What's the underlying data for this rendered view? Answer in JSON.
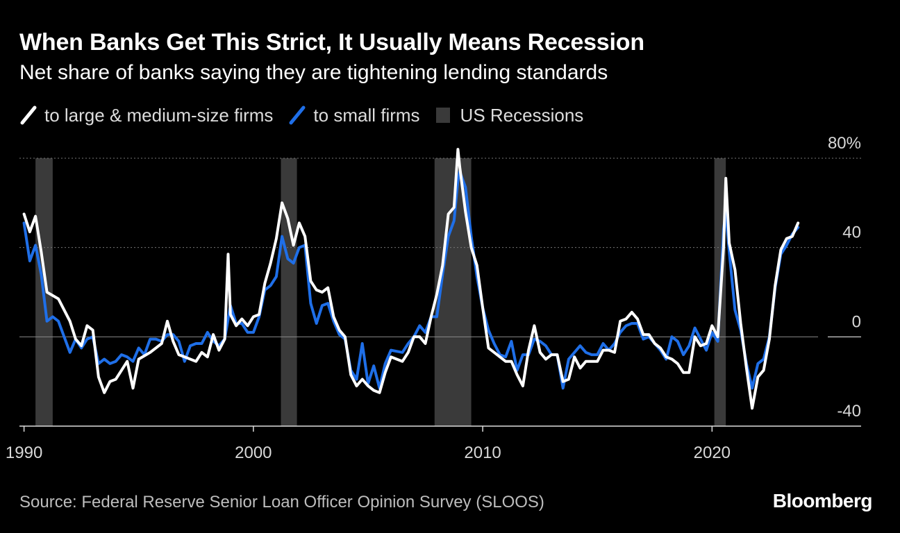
{
  "title": "When Banks Get This Strict, It Usually Means Recession",
  "subtitle": "Net share of banks saying they are tightening lending standards",
  "legend": {
    "large_firms": "to large & medium-size firms",
    "small_firms": "to small firms",
    "recessions": "US Recessions"
  },
  "source": "Source: Federal Reserve Senior Loan Officer Opinion Survey (SLOOS)",
  "brand": "Bloomberg",
  "colors": {
    "background": "#000000",
    "large_firms": "#ffffff",
    "small_firms": "#1f6fe8",
    "recession": "#3a3a3a",
    "grid": "#777777"
  },
  "chart_data": {
    "type": "line",
    "title": "When Banks Get This Strict, It Usually Means Recession",
    "subtitle": "Net share of banks saying they are tightening lending standards",
    "xlabel": "",
    "ylabel": "",
    "xlim": [
      1989.8,
      2026.5
    ],
    "ylim": [
      -40,
      80
    ],
    "x_ticks": [
      1990,
      2000,
      2010,
      2020
    ],
    "x_tick_labels": [
      "1990",
      "2000",
      "2010",
      "2020"
    ],
    "y_ticks": [
      80,
      40,
      0,
      -40
    ],
    "y_tick_labels": [
      "80%",
      "40",
      "0",
      "-40"
    ],
    "gridlines": "horizontal dotted at 80 and 40, solid at 0",
    "recessions": [
      [
        1990.5,
        1991.25
      ],
      [
        2001.2,
        2001.9
      ],
      [
        2007.9,
        2009.5
      ],
      [
        2020.1,
        2020.6
      ]
    ],
    "series": [
      {
        "name": "to large & medium-size firms",
        "points": [
          [
            1990.0,
            55
          ],
          [
            1990.25,
            47
          ],
          [
            1990.5,
            54
          ],
          [
            1990.75,
            38
          ],
          [
            1991.0,
            20
          ],
          [
            1991.5,
            17
          ],
          [
            1992.0,
            7
          ],
          [
            1992.25,
            -1
          ],
          [
            1992.5,
            -4
          ],
          [
            1992.75,
            5
          ],
          [
            1993.0,
            3
          ],
          [
            1993.25,
            -18
          ],
          [
            1993.5,
            -25
          ],
          [
            1993.75,
            -20
          ],
          [
            1994.0,
            -19
          ],
          [
            1994.25,
            -15
          ],
          [
            1994.5,
            -11
          ],
          [
            1994.75,
            -23
          ],
          [
            1995.0,
            -10
          ],
          [
            1995.5,
            -7
          ],
          [
            1996.0,
            -3
          ],
          [
            1996.25,
            7
          ],
          [
            1996.5,
            -2
          ],
          [
            1996.75,
            -8
          ],
          [
            1997.0,
            -9
          ],
          [
            1997.25,
            -10
          ],
          [
            1997.5,
            -11
          ],
          [
            1997.75,
            -7
          ],
          [
            1998.0,
            -9
          ],
          [
            1998.25,
            1
          ],
          [
            1998.5,
            -6
          ],
          [
            1998.75,
            -1
          ],
          [
            1998.9,
            37
          ],
          [
            1999.0,
            10
          ],
          [
            1999.25,
            5
          ],
          [
            1999.5,
            8
          ],
          [
            1999.75,
            5
          ],
          [
            2000.0,
            9
          ],
          [
            2000.25,
            10
          ],
          [
            2000.5,
            24
          ],
          [
            2000.75,
            33
          ],
          [
            2001.0,
            44
          ],
          [
            2001.25,
            60
          ],
          [
            2001.5,
            53
          ],
          [
            2001.75,
            41
          ],
          [
            2002.0,
            51
          ],
          [
            2002.25,
            45
          ],
          [
            2002.5,
            25
          ],
          [
            2002.75,
            21
          ],
          [
            2003.0,
            20
          ],
          [
            2003.25,
            22
          ],
          [
            2003.5,
            9
          ],
          [
            2003.75,
            3
          ],
          [
            2004.0,
            0
          ],
          [
            2004.25,
            -17
          ],
          [
            2004.5,
            -22
          ],
          [
            2004.75,
            -19
          ],
          [
            2005.0,
            -22
          ],
          [
            2005.25,
            -24
          ],
          [
            2005.5,
            -25
          ],
          [
            2005.75,
            -16
          ],
          [
            2006.0,
            -9
          ],
          [
            2006.5,
            -11
          ],
          [
            2006.75,
            -7
          ],
          [
            2007.0,
            0
          ],
          [
            2007.25,
            0
          ],
          [
            2007.5,
            -3
          ],
          [
            2007.75,
            9
          ],
          [
            2008.0,
            19
          ],
          [
            2008.25,
            32
          ],
          [
            2008.5,
            55
          ],
          [
            2008.75,
            58
          ],
          [
            2008.92,
            84
          ],
          [
            2009.0,
            76
          ],
          [
            2009.25,
            56
          ],
          [
            2009.5,
            40
          ],
          [
            2009.75,
            32
          ],
          [
            2010.0,
            13
          ],
          [
            2010.25,
            -5
          ],
          [
            2010.5,
            -7
          ],
          [
            2010.75,
            -9
          ],
          [
            2011.0,
            -11
          ],
          [
            2011.25,
            -11
          ],
          [
            2011.5,
            -17
          ],
          [
            2011.75,
            -22
          ],
          [
            2012.0,
            -6
          ],
          [
            2012.25,
            5
          ],
          [
            2012.5,
            -7
          ],
          [
            2012.75,
            -10
          ],
          [
            2013.0,
            -8
          ],
          [
            2013.25,
            -8
          ],
          [
            2013.5,
            -20
          ],
          [
            2013.75,
            -19
          ],
          [
            2014.0,
            -9
          ],
          [
            2014.25,
            -14
          ],
          [
            2014.5,
            -11
          ],
          [
            2014.75,
            -11
          ],
          [
            2015.0,
            -11
          ],
          [
            2015.25,
            -6
          ],
          [
            2015.5,
            -6
          ],
          [
            2015.75,
            -7
          ],
          [
            2016.0,
            7
          ],
          [
            2016.25,
            8
          ],
          [
            2016.5,
            11
          ],
          [
            2016.75,
            8
          ],
          [
            2017.0,
            1
          ],
          [
            2017.25,
            1
          ],
          [
            2017.5,
            -3
          ],
          [
            2017.75,
            -5
          ],
          [
            2018.0,
            -9
          ],
          [
            2018.25,
            -10
          ],
          [
            2018.5,
            -12
          ],
          [
            2018.75,
            -16
          ],
          [
            2019.0,
            -16
          ],
          [
            2019.25,
            0
          ],
          [
            2019.5,
            -4
          ],
          [
            2019.75,
            -3
          ],
          [
            2020.0,
            5
          ],
          [
            2020.25,
            0
          ],
          [
            2020.5,
            40
          ],
          [
            2020.6,
            71
          ],
          [
            2020.75,
            42
          ],
          [
            2021.0,
            30
          ],
          [
            2021.25,
            6
          ],
          [
            2021.5,
            -14
          ],
          [
            2021.75,
            -32
          ],
          [
            2022.0,
            -18
          ],
          [
            2022.25,
            -15
          ],
          [
            2022.5,
            -1
          ],
          [
            2022.75,
            23
          ],
          [
            2023.0,
            39
          ],
          [
            2023.25,
            44
          ],
          [
            2023.5,
            45
          ],
          [
            2023.75,
            51
          ]
        ]
      },
      {
        "name": "to small firms",
        "points": [
          [
            1990.0,
            51
          ],
          [
            1990.25,
            34
          ],
          [
            1990.5,
            41
          ],
          [
            1990.75,
            28
          ],
          [
            1991.0,
            7
          ],
          [
            1991.25,
            9
          ],
          [
            1991.5,
            7
          ],
          [
            1991.75,
            0
          ],
          [
            1992.0,
            -7
          ],
          [
            1992.25,
            -1
          ],
          [
            1992.5,
            -5
          ],
          [
            1992.75,
            -1
          ],
          [
            1993.0,
            0
          ],
          [
            1993.25,
            -12
          ],
          [
            1993.5,
            -10
          ],
          [
            1993.75,
            -12
          ],
          [
            1994.0,
            -11
          ],
          [
            1994.25,
            -8
          ],
          [
            1994.5,
            -9
          ],
          [
            1994.75,
            -11
          ],
          [
            1995.0,
            -5
          ],
          [
            1995.25,
            -8
          ],
          [
            1995.5,
            -1
          ],
          [
            1995.75,
            -1
          ],
          [
            1996.0,
            -2
          ],
          [
            1996.25,
            1
          ],
          [
            1996.5,
            1
          ],
          [
            1996.75,
            -2
          ],
          [
            1997.0,
            -11
          ],
          [
            1997.25,
            -4
          ],
          [
            1997.5,
            -3
          ],
          [
            1997.75,
            -3
          ],
          [
            1998.0,
            2
          ],
          [
            1998.25,
            -2
          ],
          [
            1998.5,
            -4
          ],
          [
            1998.75,
            -1
          ],
          [
            1999.0,
            14
          ],
          [
            1999.25,
            6
          ],
          [
            1999.5,
            6
          ],
          [
            1999.75,
            2
          ],
          [
            2000.0,
            2
          ],
          [
            2000.25,
            9
          ],
          [
            2000.5,
            21
          ],
          [
            2000.75,
            23
          ],
          [
            2001.0,
            27
          ],
          [
            2001.25,
            45
          ],
          [
            2001.5,
            35
          ],
          [
            2001.75,
            33
          ],
          [
            2002.0,
            40
          ],
          [
            2002.25,
            41
          ],
          [
            2002.5,
            15
          ],
          [
            2002.75,
            6
          ],
          [
            2003.0,
            14
          ],
          [
            2003.25,
            15
          ],
          [
            2003.5,
            7
          ],
          [
            2003.75,
            1
          ],
          [
            2004.0,
            -1
          ],
          [
            2004.25,
            -15
          ],
          [
            2004.5,
            -19
          ],
          [
            2004.75,
            -3
          ],
          [
            2005.0,
            -21
          ],
          [
            2005.25,
            -13
          ],
          [
            2005.5,
            -23
          ],
          [
            2005.75,
            -12
          ],
          [
            2006.0,
            -6
          ],
          [
            2006.5,
            -7
          ],
          [
            2006.75,
            -3
          ],
          [
            2007.0,
            0
          ],
          [
            2007.25,
            5
          ],
          [
            2007.5,
            2
          ],
          [
            2007.75,
            9
          ],
          [
            2008.0,
            9
          ],
          [
            2008.25,
            28
          ],
          [
            2008.5,
            45
          ],
          [
            2008.75,
            52
          ],
          [
            2008.92,
            70
          ],
          [
            2009.0,
            74
          ],
          [
            2009.25,
            67
          ],
          [
            2009.5,
            45
          ],
          [
            2009.75,
            27
          ],
          [
            2010.0,
            13
          ],
          [
            2010.25,
            3
          ],
          [
            2010.5,
            -3
          ],
          [
            2010.75,
            -8
          ],
          [
            2011.0,
            -9
          ],
          [
            2011.25,
            -2
          ],
          [
            2011.5,
            -15
          ],
          [
            2011.75,
            -8
          ],
          [
            2012.0,
            -8
          ],
          [
            2012.25,
            -1
          ],
          [
            2012.5,
            -2
          ],
          [
            2012.75,
            -4
          ],
          [
            2013.0,
            -8
          ],
          [
            2013.25,
            -8
          ],
          [
            2013.5,
            -23
          ],
          [
            2013.75,
            -10
          ],
          [
            2014.0,
            -7
          ],
          [
            2014.25,
            -4
          ],
          [
            2014.5,
            -7
          ],
          [
            2014.75,
            -8
          ],
          [
            2015.0,
            -8
          ],
          [
            2015.25,
            -3
          ],
          [
            2015.5,
            -6
          ],
          [
            2015.75,
            -3
          ],
          [
            2016.0,
            2
          ],
          [
            2016.25,
            5
          ],
          [
            2016.5,
            6
          ],
          [
            2016.75,
            6
          ],
          [
            2017.0,
            -1
          ],
          [
            2017.25,
            0
          ],
          [
            2017.5,
            -3
          ],
          [
            2017.75,
            -6
          ],
          [
            2018.0,
            -10
          ],
          [
            2018.25,
            0
          ],
          [
            2018.5,
            -2
          ],
          [
            2018.75,
            -8
          ],
          [
            2019.0,
            -4
          ],
          [
            2019.25,
            4
          ],
          [
            2019.5,
            -1
          ],
          [
            2019.75,
            -6
          ],
          [
            2020.0,
            2
          ],
          [
            2020.25,
            -2
          ],
          [
            2020.5,
            48
          ],
          [
            2020.6,
            56
          ],
          [
            2020.75,
            38
          ],
          [
            2021.0,
            12
          ],
          [
            2021.25,
            3
          ],
          [
            2021.5,
            -12
          ],
          [
            2021.75,
            -23
          ],
          [
            2022.0,
            -12
          ],
          [
            2022.25,
            -10
          ],
          [
            2022.5,
            0
          ],
          [
            2022.75,
            22
          ],
          [
            2023.0,
            37
          ],
          [
            2023.25,
            41
          ],
          [
            2023.5,
            46
          ],
          [
            2023.75,
            49
          ]
        ]
      }
    ]
  }
}
